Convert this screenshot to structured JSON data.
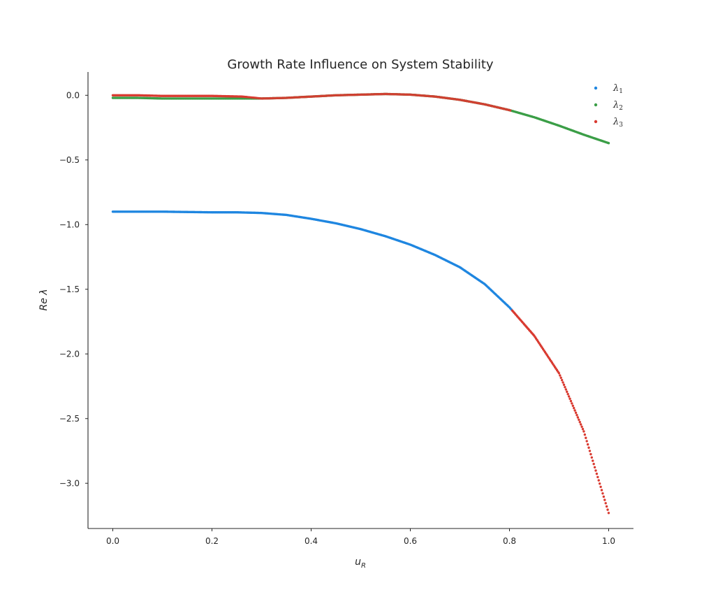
{
  "chart_data": {
    "type": "scatter",
    "title": "Growth Rate Influence on System Stability",
    "xlabel": "u",
    "xlabel_sub": "R",
    "ylabel": "Re  λ",
    "xlim": [
      -0.05,
      1.05
    ],
    "ylim": [
      -3.35,
      0.18
    ],
    "xticks": [
      0.0,
      0.2,
      0.4,
      0.6,
      0.8,
      1.0
    ],
    "xtick_labels": [
      "0.0",
      "0.2",
      "0.4",
      "0.6",
      "0.8",
      "1.0"
    ],
    "yticks": [
      0.0,
      -0.5,
      -1.0,
      -1.5,
      -2.0,
      -2.5,
      -3.0
    ],
    "ytick_labels": [
      "0.0",
      "−0.5",
      "−1.0",
      "−1.5",
      "−2.0",
      "−2.5",
      "−3.0"
    ],
    "grid": false,
    "legend_position": "top-right",
    "legend": [
      {
        "base": "λ",
        "sub": "1",
        "color": "#1f86e0"
      },
      {
        "base": "λ",
        "sub": "2",
        "color": "#3b9e47"
      },
      {
        "base": "λ",
        "sub": "3",
        "color": "#d93a30"
      }
    ],
    "colors": {
      "lambda1": "#1f86e0",
      "lambda2": "#3b9e47",
      "lambda3": "#d93a30"
    },
    "n_points": 500,
    "upper_pair": [
      [
        0.0,
        -0.02
      ],
      [
        0.05,
        -0.02
      ],
      [
        0.1,
        -0.025
      ],
      [
        0.15,
        -0.025
      ],
      [
        0.2,
        -0.025
      ],
      [
        0.25,
        -0.025
      ],
      [
        0.3,
        -0.025
      ],
      [
        0.35,
        -0.02
      ],
      [
        0.4,
        -0.01
      ],
      [
        0.45,
        0.0
      ],
      [
        0.5,
        0.005
      ],
      [
        0.55,
        0.01
      ],
      [
        0.6,
        0.005
      ],
      [
        0.65,
        -0.01
      ],
      [
        0.7,
        -0.035
      ],
      [
        0.75,
        -0.07
      ],
      [
        0.8,
        -0.115
      ],
      [
        0.85,
        -0.17
      ],
      [
        0.9,
        -0.235
      ],
      [
        0.95,
        -0.305
      ],
      [
        1.0,
        -0.37
      ]
    ],
    "lambda3_upper_offset": [
      [
        0.0,
        0.02
      ],
      [
        0.1,
        0.02
      ],
      [
        0.2,
        0.02
      ],
      [
        0.26,
        0.015
      ],
      [
        0.3,
        0.0
      ]
    ],
    "lower_branch": [
      [
        0.0,
        -0.9
      ],
      [
        0.1,
        -0.9
      ],
      [
        0.2,
        -0.905
      ],
      [
        0.25,
        -0.905
      ],
      [
        0.3,
        -0.91
      ],
      [
        0.35,
        -0.925
      ],
      [
        0.4,
        -0.955
      ],
      [
        0.45,
        -0.99
      ],
      [
        0.5,
        -1.035
      ],
      [
        0.55,
        -1.09
      ],
      [
        0.6,
        -1.155
      ],
      [
        0.65,
        -1.235
      ],
      [
        0.7,
        -1.33
      ],
      [
        0.75,
        -1.46
      ],
      [
        0.8,
        -1.64
      ],
      [
        0.85,
        -1.86
      ],
      [
        0.9,
        -2.15
      ],
      [
        0.95,
        -2.6
      ],
      [
        1.0,
        -3.23
      ]
    ],
    "switch_x": 0.805
  }
}
